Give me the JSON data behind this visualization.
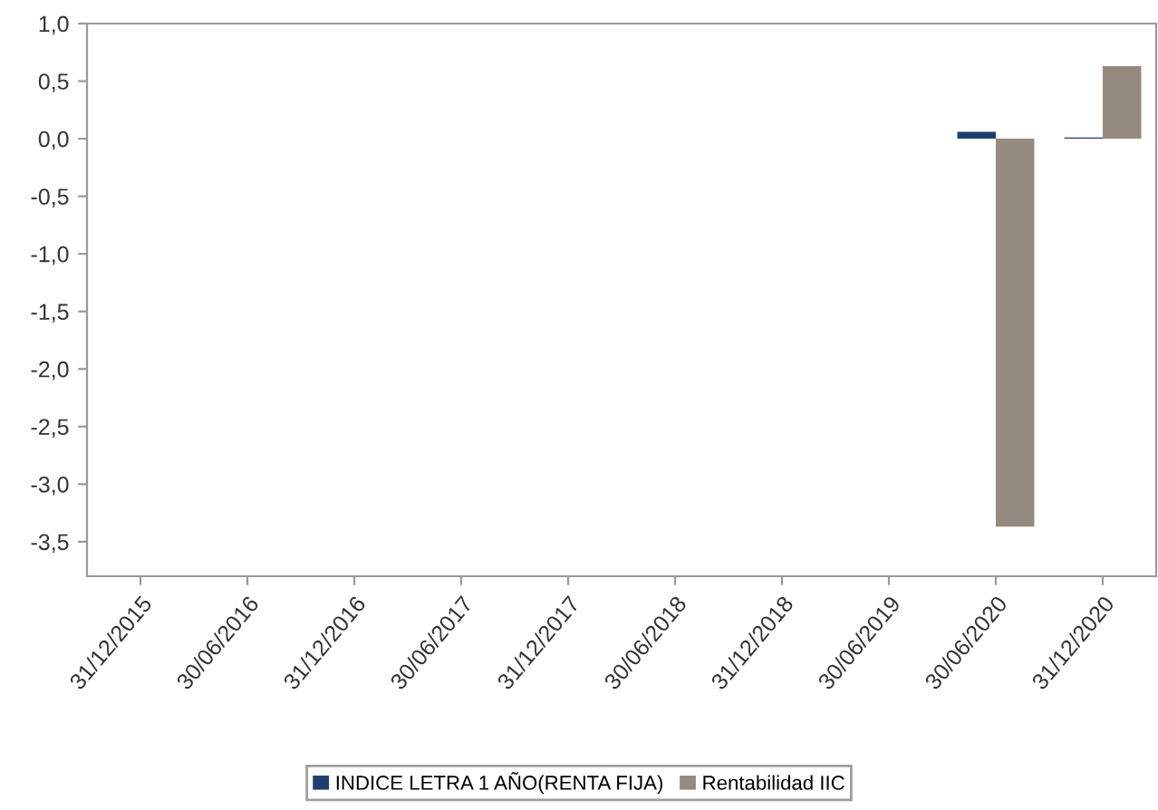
{
  "chart_data": {
    "type": "bar",
    "categories": [
      "31/12/2015",
      "30/06/2016",
      "31/12/2016",
      "30/06/2017",
      "31/12/2017",
      "30/06/2018",
      "31/12/2018",
      "30/06/2019",
      "30/06/2020",
      "31/12/2020"
    ],
    "series": [
      {
        "name": "INDICE LETRA 1 AÑO(RENTA FIJA)",
        "color": "#1f3d6e",
        "values": [
          null,
          null,
          null,
          null,
          null,
          null,
          null,
          null,
          0.06,
          0.01
        ]
      },
      {
        "name": "Rentabilidad IIC",
        "color": "#958a80",
        "values": [
          null,
          null,
          null,
          null,
          null,
          null,
          null,
          null,
          -3.37,
          0.63
        ]
      }
    ],
    "ylim": [
      -3.8,
      1.0
    ],
    "yticks": [
      {
        "value": 1.0,
        "label": "1,0"
      },
      {
        "value": 0.5,
        "label": "0,5"
      },
      {
        "value": 0.0,
        "label": "0,0"
      },
      {
        "value": -0.5,
        "label": "-0,5"
      },
      {
        "value": -1.0,
        "label": "-1,0"
      },
      {
        "value": -1.5,
        "label": "-1,5"
      },
      {
        "value": -2.0,
        "label": "-2,0"
      },
      {
        "value": -2.5,
        "label": "-2,5"
      },
      {
        "value": -3.0,
        "label": "-3,0"
      },
      {
        "value": -3.5,
        "label": "-3,5"
      }
    ],
    "grid": false,
    "legend": "bottom"
  }
}
